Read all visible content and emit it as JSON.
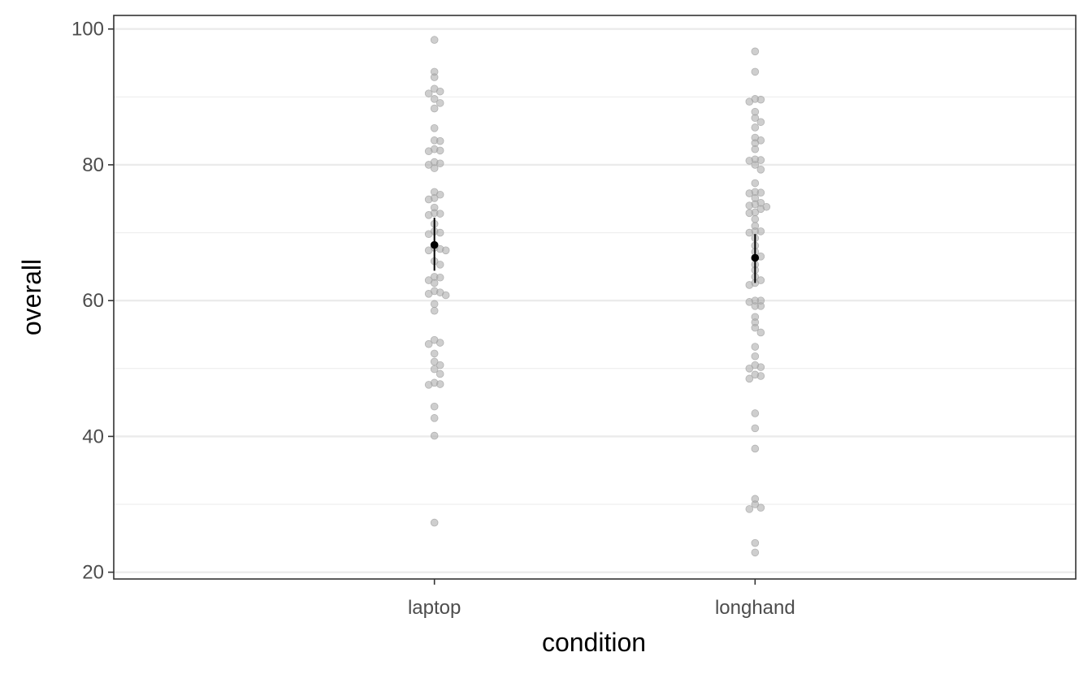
{
  "chart_data": {
    "type": "scatter",
    "title": "",
    "xlabel": "condition",
    "ylabel": "overall",
    "categories": [
      "laptop",
      "longhand"
    ],
    "ylim": [
      19,
      102
    ],
    "y_ticks": [
      20,
      40,
      60,
      80,
      100
    ],
    "y_tick_labels": [
      "20",
      "40",
      "60",
      "80",
      "100"
    ],
    "grid": true,
    "colors": {
      "points": "#a6a6a6",
      "summary": "#000000",
      "grid": "#ebebeb",
      "frame": "#333333"
    },
    "points": [
      {
        "category": "laptop",
        "values": [
          98.4,
          93.7,
          92.9,
          91.2,
          90.8,
          90.5,
          89.7,
          89.1,
          88.3,
          85.4,
          83.6,
          83.5,
          82.3,
          82.1,
          82.0,
          80.4,
          80.2,
          80.0,
          79.5,
          76.0,
          75.6,
          75.1,
          74.9,
          73.7,
          72.9,
          72.8,
          72.6,
          71.3,
          70.2,
          70.0,
          69.8,
          67.8,
          67.6,
          67.4,
          67.4,
          65.8,
          65.3,
          63.5,
          63.4,
          63.0,
          62.6,
          61.4,
          61.2,
          61.0,
          60.8,
          59.5,
          58.5,
          54.2,
          53.8,
          53.6,
          52.2,
          51.0,
          50.5,
          49.9,
          49.2,
          47.9,
          47.7,
          47.6,
          44.4,
          42.7,
          40.1,
          27.3
        ]
      },
      {
        "category": "longhand",
        "values": [
          96.7,
          93.7,
          89.7,
          89.6,
          89.3,
          87.8,
          86.9,
          86.3,
          85.5,
          84.0,
          83.6,
          83.2,
          82.3,
          80.8,
          80.7,
          80.6,
          80.0,
          79.3,
          77.3,
          76.0,
          75.9,
          75.8,
          75.1,
          74.4,
          74.2,
          74.0,
          73.8,
          73.5,
          73.0,
          72.9,
          72.0,
          71.0,
          70.2,
          70.2,
          70.0,
          69.2,
          68.1,
          67.2,
          66.5,
          66.3,
          65.3,
          64.5,
          63.5,
          63.0,
          62.6,
          62.3,
          60.0,
          60.0,
          59.8,
          59.2,
          59.2,
          57.6,
          56.8,
          56.0,
          55.3,
          53.2,
          51.8,
          50.5,
          50.2,
          50.0,
          49.1,
          48.9,
          48.5,
          43.4,
          41.2,
          38.2,
          30.8,
          30.0,
          29.5,
          29.3,
          24.3,
          22.9
        ]
      }
    ],
    "summary": [
      {
        "category": "laptop",
        "mean": 68.2,
        "lower": 64.4,
        "upper": 72.2
      },
      {
        "category": "longhand",
        "mean": 66.3,
        "lower": 62.6,
        "upper": 69.8
      }
    ]
  }
}
